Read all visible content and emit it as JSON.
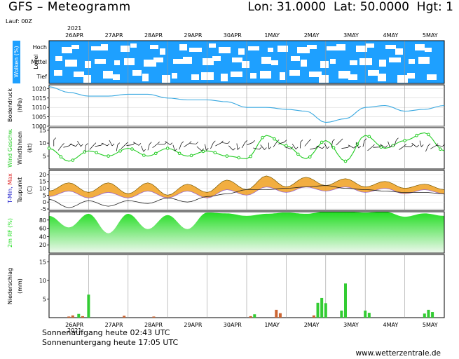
{
  "header": {
    "title": "GFS – Meteogramm",
    "coords": "Lon: 31.0000  Lat: 50.0000  Hgt: 1",
    "run": "Lauf: 00Z",
    "year": "2021"
  },
  "footer": {
    "sunrise": "Sonnenaufgang heute 02:43 UTC",
    "sunset": "Sonnenuntergang heute 17:05 UTC",
    "site": "www.wetterzentrale.de"
  },
  "colors": {
    "cloud_blue": "#1ea0ff",
    "pressure_line": "#38a8e0",
    "wind_green": "#22cc22",
    "humidity_green": "#22dd22",
    "precip_green": "#33cc33",
    "precip_orange": "#cc6633",
    "tmin_blue": "#2222cc",
    "tmax_red": "#dd2222",
    "temp_orange": "#f0a020"
  },
  "chart_data": [
    {
      "panel": "clouds",
      "type": "heatmap",
      "ylabel": "Wolken (%)",
      "level_label": "Level",
      "levels": [
        "Hoch",
        "Mittel",
        "Tief"
      ],
      "x_ticks": [
        "26APR",
        "27APR",
        "28APR",
        "29APR",
        "30APR",
        "1MAY",
        "2MAY",
        "3MAY",
        "4MAY",
        "5MAY"
      ]
    },
    {
      "panel": "pressure",
      "type": "line",
      "ylabel": "Bodendruck",
      "unit": "(hPa)",
      "ylim": [
        1000,
        1022
      ],
      "yticks": [
        1000,
        1005,
        1010,
        1015,
        1020
      ],
      "x_days": [
        0,
        0.5,
        1,
        1.5,
        2,
        2.5,
        3,
        3.5,
        4,
        4.5,
        5,
        5.5,
        6,
        6.5,
        7,
        7.5,
        8,
        8.5,
        9,
        9.5,
        10
      ],
      "values": [
        1021,
        1018,
        1016,
        1016,
        1017,
        1017,
        1015,
        1014,
        1014,
        1013,
        1010,
        1010,
        1009,
        1008,
        1002,
        1004,
        1010,
        1011,
        1008,
        1009,
        1011
      ]
    },
    {
      "panel": "wind",
      "type": "line",
      "ylabel": "Wind Geschw.",
      "ylabel2": "Windfahnen",
      "unit": "(kt)",
      "ylim": [
        0,
        16
      ],
      "yticks": [
        5,
        10,
        15
      ],
      "x_days": [
        0,
        0.5,
        1,
        1.5,
        2,
        2.5,
        3,
        3.5,
        4,
        4.5,
        5,
        5.5,
        6,
        6.5,
        7,
        7.5,
        8,
        8.5,
        9,
        9.5,
        10
      ],
      "values": [
        8,
        3,
        7,
        5,
        8,
        5,
        8,
        5,
        7,
        5,
        4,
        13,
        9,
        4,
        11,
        3,
        13,
        8,
        11,
        14,
        7
      ]
    },
    {
      "panel": "temperature",
      "type": "line",
      "ylabel": "Taupunkt",
      "ylabel_tmin": "T-Min,",
      "ylabel_tmax": "Max",
      "unit": "(C)",
      "ylim": [
        -6,
        23
      ],
      "yticks": [
        -5,
        0,
        5,
        10,
        15,
        20
      ],
      "x_days": [
        0,
        0.5,
        1,
        1.5,
        2,
        2.5,
        3,
        3.5,
        4,
        4.5,
        5,
        5.5,
        6,
        6.5,
        7,
        7.5,
        8,
        8.5,
        9,
        9.5,
        10
      ],
      "tmax": [
        8,
        14,
        7,
        14,
        6,
        14,
        5,
        13,
        7,
        16,
        9,
        19,
        11,
        18,
        12,
        17,
        11,
        15,
        10,
        13,
        9
      ],
      "tmin": [
        4,
        8,
        3,
        7,
        3,
        8,
        3,
        8,
        3,
        9,
        5,
        11,
        7,
        11,
        8,
        11,
        7,
        10,
        6,
        9,
        6
      ],
      "dewpoint": [
        2,
        -4,
        1,
        -3,
        1,
        -1,
        3,
        0,
        4,
        6,
        9,
        9,
        10,
        11,
        12,
        10,
        9,
        8,
        7,
        7,
        6
      ]
    },
    {
      "panel": "humidity",
      "type": "area",
      "ylabel": "2m RF (%)",
      "ylim": [
        0,
        100
      ],
      "yticks": [
        20,
        40,
        60,
        80
      ],
      "x_days": [
        0,
        0.5,
        1,
        1.5,
        2,
        2.5,
        3,
        3.5,
        4,
        4.5,
        5,
        5.5,
        6,
        6.5,
        7,
        7.5,
        8,
        8.5,
        9,
        9.5,
        10
      ],
      "values": [
        90,
        62,
        95,
        48,
        95,
        58,
        92,
        58,
        98,
        96,
        90,
        95,
        98,
        95,
        100,
        100,
        98,
        100,
        88,
        96,
        90
      ]
    },
    {
      "panel": "precipitation",
      "type": "bar",
      "ylabel": "Niederschlag",
      "unit": "(mm)",
      "ylim": [
        0,
        17
      ],
      "yticks": [
        5,
        10,
        15
      ],
      "x_days": [
        0.5,
        0.6,
        0.75,
        0.85,
        1.0,
        1.9,
        2.65,
        5.1,
        5.2,
        5.75,
        5.85,
        6.7,
        6.8,
        6.9,
        7.0,
        7.4,
        7.5,
        8.0,
        8.1,
        9.5,
        9.6,
        9.7
      ],
      "values": [
        0.3,
        0.6,
        1.0,
        0.4,
        6.2,
        0.5,
        0.3,
        0.4,
        0.9,
        2.1,
        1.2,
        0.6,
        4.0,
        5.3,
        3.9,
        1.9,
        9.2,
        1.9,
        1.3,
        1.1,
        2.1,
        1.5
      ],
      "kinds": [
        "o",
        "o",
        "g",
        "o",
        "g",
        "o",
        "o",
        "o",
        "g",
        "o",
        "o",
        "o",
        "g",
        "g",
        "g",
        "g",
        "g",
        "g",
        "g",
        "g",
        "g",
        "g"
      ]
    }
  ]
}
